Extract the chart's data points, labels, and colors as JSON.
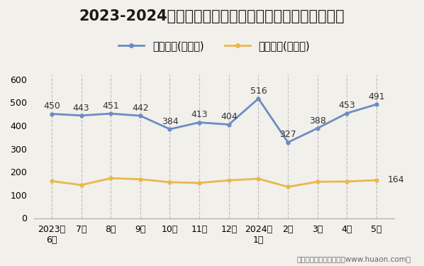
{
  "title": "2023-2024年浙江省商品收发货人所在地进、出口额统计",
  "x_labels": [
    "2023年\n6月",
    "7月",
    "8月",
    "9月",
    "10月",
    "11月",
    "12月",
    "2024年\n1月",
    "2月",
    "3月",
    "4月",
    "5月"
  ],
  "export_values": [
    450,
    443,
    451,
    442,
    384,
    413,
    404,
    516,
    327,
    388,
    453,
    491
  ],
  "import_values": [
    160,
    143,
    172,
    168,
    155,
    152,
    163,
    170,
    135,
    157,
    158,
    164
  ],
  "export_label": "出口总额(亿美元)",
  "import_label": "进口总额(亿美元)",
  "export_color": "#6b8cc4",
  "import_color": "#e8b84b",
  "bg_color": "#f2f0eb",
  "grid_color": "#c0c0c0",
  "ylim": [
    0,
    620
  ],
  "yticks": [
    0,
    100,
    200,
    300,
    400,
    500,
    600
  ],
  "footer": "制图：华经产业研究院（www.huaon.com）",
  "title_fontsize": 15,
  "legend_fontsize": 10.5,
  "tick_fontsize": 9,
  "annotation_fontsize": 9
}
